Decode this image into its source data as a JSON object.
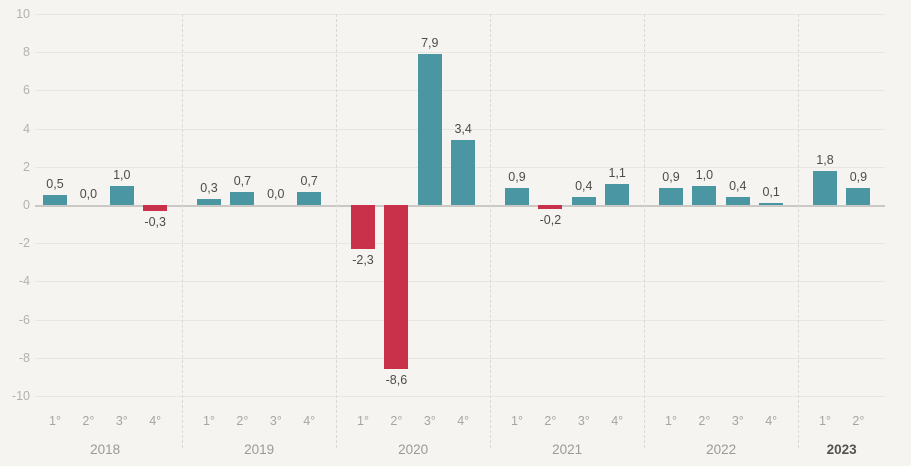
{
  "chart_data": {
    "type": "bar",
    "title": "",
    "xlabel": "",
    "ylabel": "",
    "ylim": [
      -10,
      10
    ],
    "ytick_step": 2,
    "yticks": [
      10,
      8,
      6,
      4,
      2,
      0,
      -2,
      -4,
      -6,
      -8,
      -10
    ],
    "ytick_labels": [
      "10",
      "8",
      "6",
      "4",
      "2",
      "0",
      "-2",
      "-4",
      "-6",
      "-8",
      "-10"
    ],
    "grid": true,
    "legend": "none",
    "decimal_separator": ",",
    "colors": {
      "positive": "#4a96a3",
      "negative": "#c9314b",
      "background": "#f5f4f1",
      "gridline": "#e7e6e2",
      "zero_line": "#c9c8c4",
      "separator": "#d9d8d3"
    },
    "groups": [
      {
        "year": "2018",
        "quarters": [
          "1°",
          "2°",
          "3°",
          "4°"
        ],
        "values": [
          0.5,
          0.0,
          1.0,
          -0.3
        ],
        "labels": [
          "0,5",
          "0,0",
          "1,0",
          "-0,3"
        ],
        "emphasis": false
      },
      {
        "year": "2019",
        "quarters": [
          "1°",
          "2°",
          "3°",
          "4°"
        ],
        "values": [
          0.3,
          0.7,
          0.0,
          0.7
        ],
        "labels": [
          "0,3",
          "0,7",
          "0,0",
          "0,7"
        ],
        "emphasis": false
      },
      {
        "year": "2020",
        "quarters": [
          "1°",
          "2°",
          "3°",
          "4°"
        ],
        "values": [
          -2.3,
          -8.6,
          7.9,
          3.4
        ],
        "labels": [
          "-2,3",
          "-8,6",
          "7,9",
          "3,4"
        ],
        "emphasis": false
      },
      {
        "year": "2021",
        "quarters": [
          "1°",
          "2°",
          "3°",
          "4°"
        ],
        "values": [
          0.9,
          -0.2,
          0.4,
          1.1
        ],
        "labels": [
          "0,9",
          "-0,2",
          "0,4",
          "1,1"
        ],
        "emphasis": false
      },
      {
        "year": "2022",
        "quarters": [
          "1°",
          "2°",
          "3°",
          "4°"
        ],
        "values": [
          0.9,
          1.0,
          0.4,
          0.1
        ],
        "labels": [
          "0,9",
          "1,0",
          "0,4",
          "0,1"
        ],
        "emphasis": false
      },
      {
        "year": "2023",
        "quarters": [
          "1°",
          "2°"
        ],
        "values": [
          1.8,
          0.9
        ],
        "labels": [
          "1,8",
          "0,9"
        ],
        "emphasis": true
      }
    ]
  }
}
